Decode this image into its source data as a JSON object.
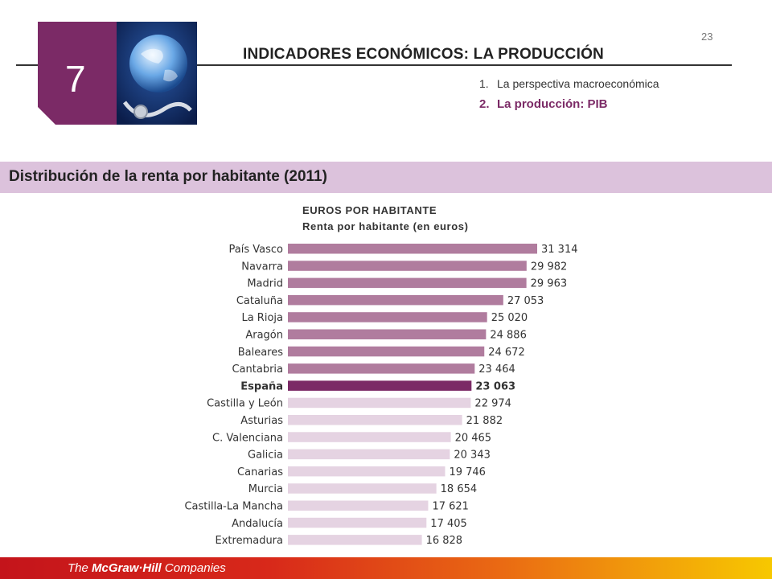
{
  "header": {
    "page_number": "23",
    "chapter_number": "7",
    "chapter_title": "INDICADORES ECONÓMICOS: LA PRODUCCIÓN",
    "toc": [
      {
        "num": "1.",
        "label": "La perspectiva macroeconómica",
        "active": false
      },
      {
        "num": "2.",
        "label": "La producción: PIB",
        "active": true
      }
    ]
  },
  "section": {
    "title": "Distribución de la renta por habitante (2011)"
  },
  "chart_data": {
    "type": "bar",
    "orientation": "horizontal",
    "title": "EUROS POR HABITANTE",
    "subtitle": "Renta por habitante (en euros)",
    "categories": [
      "País Vasco",
      "Navarra",
      "Madrid",
      "Cataluña",
      "La Rioja",
      "Aragón",
      "Baleares",
      "Cantabria",
      "España",
      "Castilla y León",
      "Asturias",
      "C. Valenciana",
      "Galicia",
      "Canarias",
      "Murcia",
      "Castilla-La Mancha",
      "Andalucía",
      "Extremadura"
    ],
    "values": [
      31314,
      29982,
      29963,
      27053,
      25020,
      24886,
      24672,
      23464,
      23063,
      22974,
      21882,
      20465,
      20343,
      19746,
      18654,
      17621,
      17405,
      16828
    ],
    "labels": [
      "31 314",
      "29 982",
      "29 963",
      "27 053",
      "25 020",
      "24 886",
      "24 672",
      "23 464",
      "23 063",
      "22 974",
      "21 882",
      "20 465",
      "20 343",
      "19 746",
      "18 654",
      "17 621",
      "17 405",
      "16 828"
    ],
    "highlight": "España",
    "colors": {
      "above": "#b07c9e",
      "highlight": "#7b2a66",
      "below": "#e5d3e2"
    }
  },
  "footer": {
    "brand_prefix": "The ",
    "brand_name": "McGraw·Hill",
    "brand_suffix": " Companies"
  }
}
